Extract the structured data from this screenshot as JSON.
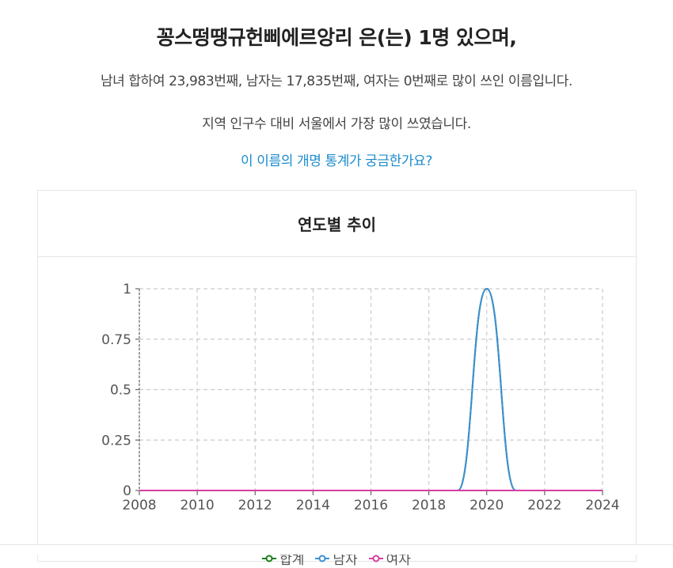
{
  "summary": {
    "title": "꽁스떵땡규헌삐에르앙리 은(는) 1명 있으며,",
    "rank_text": "남녀 합하여 23,983번째, 남자는 17,835번째, 여자는 0번째로 많이 쓰인 이름입니다.",
    "region_text": "지역 인구수 대비 서울에서 가장 많이 쓰였습니다.",
    "rename_link": "이 이름의 개명 통계가 궁금한가요?"
  },
  "card": {
    "title": "연도별 추이"
  },
  "legend": {
    "items": [
      {
        "label": "합계",
        "color": "#1a7f1a"
      },
      {
        "label": "남자",
        "color": "#3b8fd4"
      },
      {
        "label": "여자",
        "color": "#d63fa0"
      }
    ]
  },
  "chart_data": {
    "type": "line",
    "title": "연도별 추이",
    "xlabel": "",
    "ylabel": "",
    "x": [
      2008,
      2009,
      2010,
      2011,
      2012,
      2013,
      2014,
      2015,
      2016,
      2017,
      2018,
      2019,
      2020,
      2021,
      2022,
      2023,
      2024
    ],
    "x_ticks": [
      "2008",
      "2010",
      "2012",
      "2014",
      "2016",
      "2018",
      "2020",
      "2022",
      "2024"
    ],
    "y_ticks": [
      "0",
      "0.25",
      "0.5",
      "0.75",
      "1"
    ],
    "ylim": [
      0,
      1
    ],
    "xlim": [
      2008,
      2024
    ],
    "grid": true,
    "legend_position": "bottom",
    "series": [
      {
        "name": "합계",
        "color": "#1a7f1a",
        "values": [
          0,
          0,
          0,
          0,
          0,
          0,
          0,
          0,
          0,
          0,
          0,
          0,
          1,
          0,
          0,
          0,
          0
        ]
      },
      {
        "name": "남자",
        "color": "#3b8fd4",
        "values": [
          0,
          0,
          0,
          0,
          0,
          0,
          0,
          0,
          0,
          0,
          0,
          0,
          1,
          0,
          0,
          0,
          0
        ]
      },
      {
        "name": "여자",
        "color": "#d63fa0",
        "values": [
          0,
          0,
          0,
          0,
          0,
          0,
          0,
          0,
          0,
          0,
          0,
          0,
          0,
          0,
          0,
          0,
          0
        ]
      }
    ]
  }
}
